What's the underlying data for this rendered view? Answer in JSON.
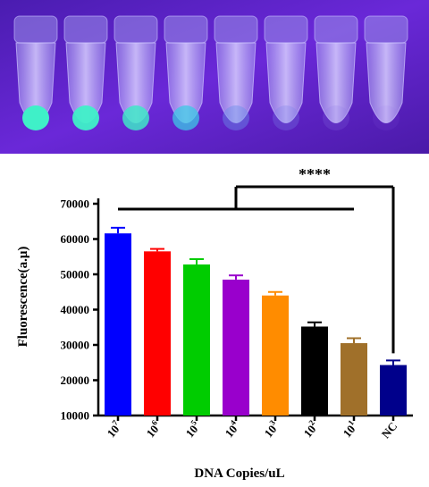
{
  "photo": {
    "tubes": [
      {
        "glow": "#3ff0c8",
        "intensity": 1.0
      },
      {
        "glow": "#3ff0c8",
        "intensity": 0.95
      },
      {
        "glow": "#40e6c8",
        "intensity": 0.85
      },
      {
        "glow": "#3cc8e6",
        "intensity": 0.75
      },
      {
        "glow": "#6a8fe8",
        "intensity": 0.45
      },
      {
        "glow": "#7a80e8",
        "intensity": 0.3
      },
      {
        "glow": "#8a78e8",
        "intensity": 0.2
      },
      {
        "glow": "#9070e8",
        "intensity": 0.1
      }
    ],
    "background": "#5a22c8"
  },
  "chart_data": {
    "type": "bar",
    "categories": [
      {
        "base": "10",
        "exp": "7"
      },
      {
        "base": "10",
        "exp": "6"
      },
      {
        "base": "10",
        "exp": "5"
      },
      {
        "base": "10",
        "exp": "4"
      },
      {
        "base": "10",
        "exp": "3"
      },
      {
        "base": "10",
        "exp": "2"
      },
      {
        "base": "10",
        "exp": "1"
      },
      {
        "base": "NC",
        "exp": ""
      }
    ],
    "values": [
      61600,
      56500,
      52800,
      48500,
      44000,
      35200,
      30500,
      24300
    ],
    "errors": [
      1600,
      700,
      1500,
      1200,
      1000,
      1200,
      1400,
      1300
    ],
    "colors": [
      "#0000ff",
      "#ff0000",
      "#00cc00",
      "#9900cc",
      "#ff8c00",
      "#000000",
      "#a0702a",
      "#00008b"
    ],
    "ylabel": "Fluorescence(a.μ)",
    "xlabel": "DNA Copies/uL",
    "ylim": [
      10000,
      70000
    ],
    "yticks": [
      10000,
      20000,
      30000,
      40000,
      50000,
      60000,
      70000
    ],
    "significance": "****"
  }
}
